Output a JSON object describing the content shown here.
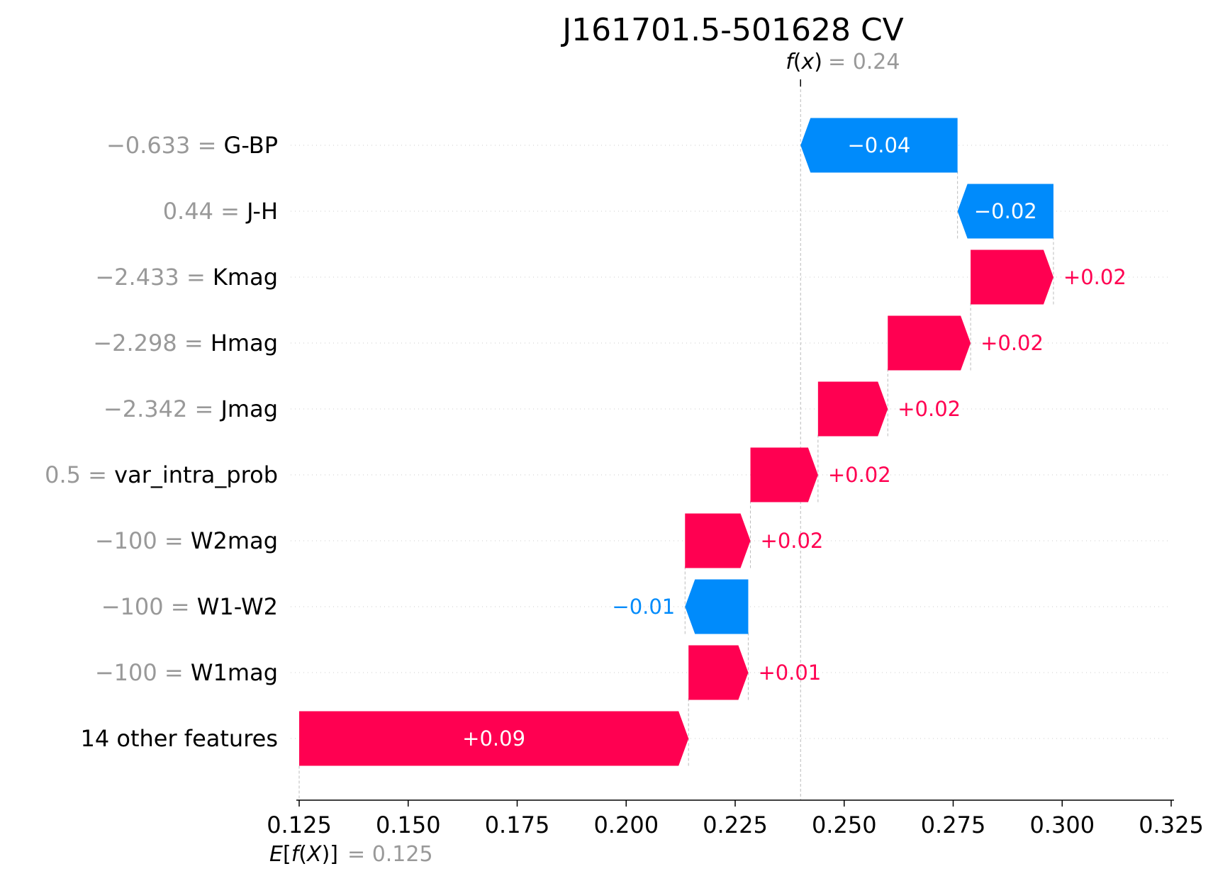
{
  "chart_data": {
    "type": "waterfall",
    "title": "J161701.5-501628 CV",
    "base_value": 0.125,
    "base_label": "E[f(X)]",
    "base_value_text": "0.125",
    "output_value": 0.24,
    "output_label": "f(x)",
    "output_value_text": "0.24",
    "xlim": [
      0.125,
      0.325
    ],
    "xticks": [
      0.125,
      0.15,
      0.175,
      0.2,
      0.225,
      0.25,
      0.275,
      0.3,
      0.325
    ],
    "xtick_labels": [
      "0.125",
      "0.150",
      "0.175",
      "0.200",
      "0.225",
      "0.250",
      "0.275",
      "0.300",
      "0.325"
    ],
    "colors": {
      "positive": "#ff0051",
      "negative": "#008bfb",
      "muted": "#999999",
      "text": "#000000"
    },
    "features": [
      {
        "value": "−0.633",
        "name": "G-BP",
        "start": 0.276,
        "end": 0.24,
        "label": "−0.04"
      },
      {
        "value": "0.44",
        "name": "J-H",
        "start": 0.298,
        "end": 0.276,
        "label": "−0.02"
      },
      {
        "value": "−2.433",
        "name": "Kmag",
        "start": 0.279,
        "end": 0.298,
        "label": "+0.02"
      },
      {
        "value": "−2.298",
        "name": "Hmag",
        "start": 0.26,
        "end": 0.279,
        "label": "+0.02"
      },
      {
        "value": "−2.342",
        "name": "Jmag",
        "start": 0.244,
        "end": 0.26,
        "label": "+0.02"
      },
      {
        "value": "0.5",
        "name": "var_intra_prob",
        "start": 0.2285,
        "end": 0.244,
        "label": "+0.02"
      },
      {
        "value": "−100",
        "name": "W2mag",
        "start": 0.2135,
        "end": 0.2285,
        "label": "+0.02"
      },
      {
        "value": "−100",
        "name": "W1-W2",
        "start": 0.228,
        "end": 0.2135,
        "label": "−0.01"
      },
      {
        "value": "−100",
        "name": "W1mag",
        "start": 0.2143,
        "end": 0.228,
        "label": "+0.01"
      },
      {
        "value": "",
        "name": "14 other features",
        "start": 0.125,
        "end": 0.2143,
        "label": "+0.09"
      }
    ]
  }
}
